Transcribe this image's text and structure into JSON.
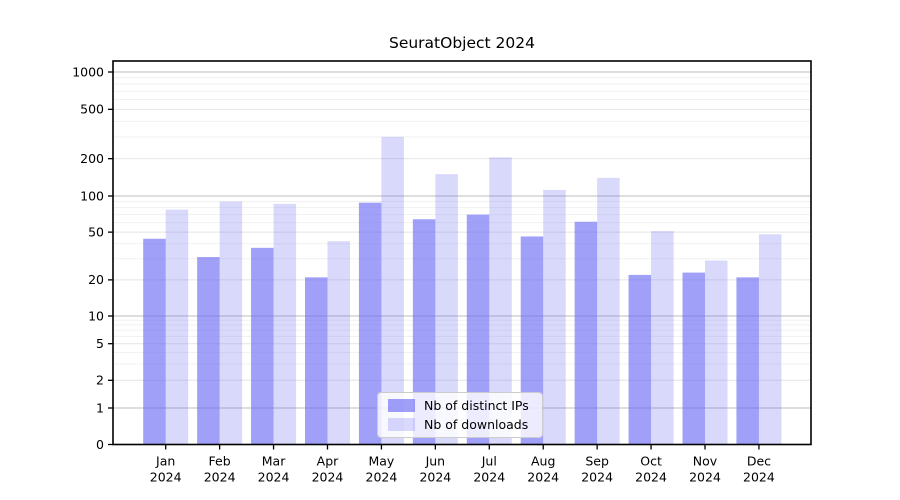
{
  "chart_data": {
    "type": "bar",
    "title": "SeuratObject 2024",
    "categories": [
      "Jan",
      "Feb",
      "Mar",
      "Apr",
      "May",
      "Jun",
      "Jul",
      "Aug",
      "Sep",
      "Oct",
      "Nov",
      "Dec"
    ],
    "category_year": "2024",
    "series": [
      {
        "name": "Nb of distinct IPs",
        "color": "rgba(102,102,245,0.62)",
        "values": [
          44,
          31,
          37,
          21,
          88,
          64,
          70,
          46,
          61,
          22,
          23,
          21
        ]
      },
      {
        "name": "Nb of downloads",
        "color": "rgba(102,102,245,0.25)",
        "values": [
          77,
          90,
          86,
          42,
          300,
          150,
          205,
          112,
          140,
          51,
          29,
          48
        ]
      }
    ],
    "yscale": "symlog",
    "ytick_labels": [
      "0",
      "1",
      "2",
      "5",
      "10",
      "20",
      "50",
      "100",
      "200",
      "500",
      "1000"
    ],
    "yticks": [
      0,
      1,
      2,
      5,
      10,
      20,
      50,
      100,
      200,
      500,
      1000
    ],
    "ylim": [
      0,
      1000
    ],
    "grid": "on",
    "legend_position": "inside-bottom-center",
    "colors": {
      "major_grid": "#bdbdbd",
      "labeled_grid": "#e4e4e4",
      "minor_grid": "#f1f1f1",
      "spine": "#000000",
      "background": "#ffffff"
    }
  }
}
